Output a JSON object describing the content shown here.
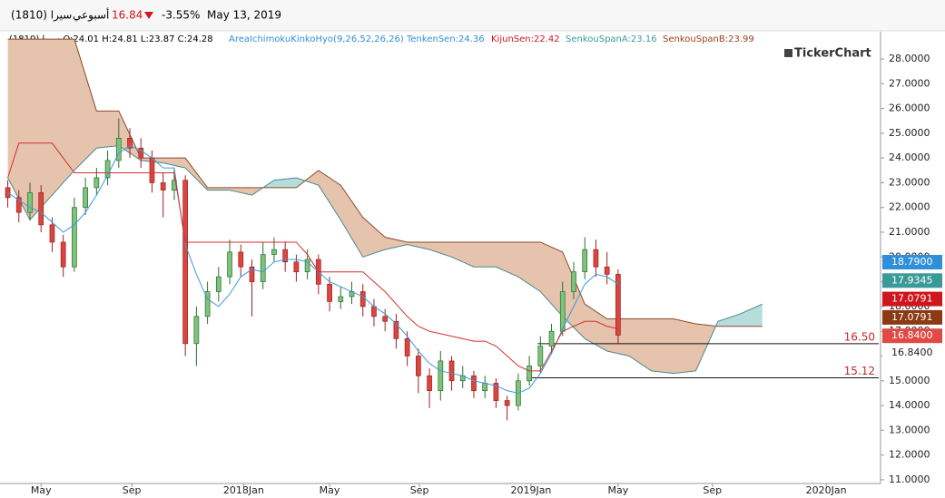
{
  "header": {
    "symbol": "سيرا (1810)",
    "period": "أسبوعي",
    "price": "16.84",
    "change": "-3.55%",
    "date": "May 13, 2019"
  },
  "legend": {
    "ohlc": "سيرا (1810)  O:24.01  H:24.81  L:23.87  C:24.28",
    "indicator": "AreaIchimokuKinkoHyo(9,26,52,26,26)",
    "tenkan": "TenkenSen:24.36",
    "kijun": "KijunSen:22.42",
    "span_a": "SenkouSpanA:23.16",
    "span_b": "SenkouSpanB:23.99",
    "logo": "TickerChart"
  },
  "chart_data": {
    "type": "candlestick",
    "xlim": [
      -7.4,
      151.3
    ],
    "xticks": [
      {
        "value": 0,
        "label": "May"
      },
      {
        "value": 16.35,
        "label": "Sep"
      },
      {
        "value": 36.5,
        "label": "2018Jan"
      },
      {
        "value": 52,
        "label": "May"
      },
      {
        "value": 68.2,
        "label": "Sep"
      },
      {
        "value": 88.3,
        "label": "2019Jan"
      },
      {
        "value": 104,
        "label": "May"
      },
      {
        "value": 121,
        "label": "Sep"
      },
      {
        "value": 141.5,
        "label": "2020Jan"
      }
    ],
    "ylim": [
      10.85,
      29.1
    ],
    "yticks": [
      {
        "value": 11,
        "label": "11.0000"
      },
      {
        "value": 12,
        "label": "12.0000"
      },
      {
        "value": 13,
        "label": "13.0000"
      },
      {
        "value": 14,
        "label": "14.0000"
      },
      {
        "value": 15,
        "label": "15.0000"
      },
      {
        "value": 16,
        "label": "16.0000"
      },
      {
        "value": 17,
        "label": "17.0000"
      },
      {
        "value": 18,
        "label": "18.0000"
      },
      {
        "value": 19,
        "label": "19.0000"
      },
      {
        "value": 20,
        "label": "20.0000"
      },
      {
        "value": 21,
        "label": "21.0000"
      },
      {
        "value": 22,
        "label": "22.0000"
      },
      {
        "value": 23,
        "label": "23.0000"
      },
      {
        "value": 24,
        "label": "24.0000"
      },
      {
        "value": 25,
        "label": "25.0000"
      },
      {
        "value": 26,
        "label": "26.0000"
      },
      {
        "value": 27,
        "label": "27.0000"
      },
      {
        "value": 28,
        "label": "28.0000"
      }
    ],
    "up_color": "#7cc47c",
    "up_stroke": "#2f6b2f",
    "down_color": "#d9453f",
    "down_stroke": "#a02020",
    "x": [
      -6,
      -4,
      -2,
      0,
      2,
      4,
      6,
      8,
      10,
      12,
      14,
      16,
      18,
      20,
      22,
      24,
      26,
      28,
      30,
      32,
      34,
      36,
      38,
      40,
      42,
      44,
      46,
      48,
      50,
      52,
      54,
      56,
      58,
      60,
      62,
      64,
      66,
      68,
      70,
      72,
      74,
      76,
      78,
      80,
      82,
      84,
      86,
      88,
      90,
      92,
      94,
      96,
      98,
      100,
      102,
      104
    ],
    "open": [
      22.8,
      22.4,
      21.8,
      22.6,
      21.3,
      20.6,
      19.6,
      22.0,
      22.8,
      23.2,
      23.9,
      24.8,
      24.4,
      24.0,
      23.0,
      22.7,
      23.1,
      16.5,
      17.6,
      18.6,
      19.2,
      20.2,
      19.6,
      19.0,
      20.1,
      20.3,
      19.8,
      19.4,
      19.9,
      18.9,
      18.2,
      18.4,
      18.6,
      18.0,
      17.6,
      17.4,
      16.7,
      16.0,
      15.2,
      14.6,
      15.8,
      15.0,
      15.2,
      14.6,
      14.9,
      14.2,
      14.0,
      15.0,
      15.6,
      16.4,
      17.0,
      18.6,
      19.4,
      20.3,
      19.6,
      19.3
    ],
    "high": [
      23.1,
      22.7,
      23.0,
      22.9,
      21.6,
      20.9,
      22.4,
      23.2,
      23.6,
      24.3,
      25.6,
      25.2,
      24.8,
      24.3,
      23.4,
      23.6,
      23.3,
      18.0,
      19.0,
      19.6,
      20.7,
      20.5,
      19.9,
      20.6,
      20.8,
      20.6,
      20.1,
      20.3,
      20.1,
      19.2,
      18.8,
      19.0,
      18.9,
      18.3,
      17.9,
      17.7,
      17.0,
      16.3,
      15.5,
      16.2,
      16.0,
      15.6,
      15.4,
      15.2,
      15.1,
      14.4,
      15.3,
      16.0,
      16.8,
      17.3,
      19.0,
      19.8,
      20.8,
      20.7,
      20.2,
      19.5
    ],
    "low": [
      22.0,
      21.4,
      21.5,
      21.0,
      20.2,
      19.2,
      19.4,
      21.7,
      22.5,
      22.9,
      23.6,
      24.0,
      23.6,
      22.6,
      21.6,
      22.3,
      16.0,
      15.6,
      17.3,
      18.2,
      18.9,
      19.2,
      17.6,
      18.7,
      19.8,
      19.4,
      19.0,
      19.1,
      18.5,
      17.8,
      17.9,
      18.1,
      17.6,
      17.2,
      17.0,
      16.3,
      15.6,
      14.5,
      13.9,
      14.2,
      14.6,
      14.7,
      14.3,
      14.3,
      13.9,
      13.4,
      13.8,
      14.8,
      15.3,
      16.1,
      16.8,
      18.3,
      19.1,
      19.2,
      18.9,
      16.5
    ],
    "close": [
      22.4,
      21.8,
      22.6,
      21.3,
      20.6,
      19.6,
      22.0,
      22.8,
      23.2,
      23.9,
      24.8,
      24.4,
      24.0,
      23.0,
      22.7,
      23.1,
      16.5,
      17.6,
      18.6,
      19.2,
      20.2,
      19.6,
      19.0,
      20.1,
      20.3,
      19.8,
      19.4,
      19.9,
      18.9,
      18.2,
      18.4,
      18.6,
      18.0,
      17.6,
      17.4,
      16.7,
      16.0,
      15.2,
      14.6,
      15.8,
      15.0,
      15.2,
      14.6,
      14.9,
      14.2,
      14.0,
      15.0,
      15.6,
      16.4,
      17.0,
      18.6,
      19.4,
      20.3,
      19.6,
      19.3,
      16.84
    ],
    "series": [
      {
        "color": "#3a9ad9",
        "values": [
          22.6,
          22.3,
          22.0,
          21.8,
          21.4,
          21.0,
          21.3,
          21.8,
          22.5,
          23.3,
          24.2,
          24.5,
          24.3,
          24.0,
          23.6,
          23.6,
          20.5,
          19.3,
          18.3,
          18.0,
          18.5,
          19.2,
          19.5,
          19.4,
          19.8,
          19.9,
          19.9,
          19.8,
          19.4,
          19.0,
          18.8,
          18.6,
          18.4,
          18.0,
          17.7,
          17.3,
          16.8,
          16.2,
          15.7,
          15.4,
          15.3,
          15.2,
          15.0,
          14.9,
          14.8,
          14.6,
          14.5,
          14.7,
          15.3,
          16.1,
          17.1,
          18.0,
          18.9,
          19.3,
          19.2,
          18.9
        ]
      },
      {
        "color": "#d32f2f",
        "values": [
          23.2,
          24.6,
          24.6,
          24.6,
          24.6,
          24.0,
          23.4,
          23.4,
          23.4,
          23.4,
          23.4,
          23.4,
          23.4,
          23.4,
          23.4,
          23.4,
          20.6,
          20.6,
          20.6,
          20.6,
          20.6,
          20.6,
          20.6,
          20.6,
          20.6,
          20.6,
          20.6,
          20.1,
          19.4,
          19.4,
          19.4,
          19.4,
          19.4,
          19.0,
          18.6,
          18.1,
          17.6,
          17.2,
          17.0,
          16.9,
          16.8,
          16.7,
          16.6,
          16.6,
          16.4,
          16.0,
          15.6,
          15.4,
          15.4,
          16.2,
          17.0,
          17.2,
          17.4,
          17.4,
          17.2,
          17.1
        ]
      }
    ],
    "cloud": {
      "x": [
        -6,
        -2,
        2,
        6,
        10,
        14,
        18,
        22,
        26,
        30,
        34,
        38,
        42,
        46,
        50,
        54,
        58,
        62,
        66,
        70,
        74,
        78,
        82,
        86,
        90,
        94,
        98,
        102,
        106,
        110,
        114,
        118,
        122,
        126,
        130
      ],
      "span_a": [
        23.2,
        21.5,
        22.5,
        23.5,
        24.4,
        24.5,
        23.9,
        23.8,
        23.6,
        22.7,
        22.7,
        22.5,
        23.1,
        23.2,
        22.9,
        21.5,
        20.0,
        20.3,
        20.5,
        20.3,
        20.0,
        19.6,
        19.6,
        19.2,
        18.6,
        17.6,
        16.7,
        16.2,
        16.0,
        15.4,
        15.3,
        15.4,
        17.4,
        17.7,
        18.1
      ],
      "span_b": [
        28.8,
        28.8,
        28.8,
        28.8,
        25.9,
        25.9,
        24.0,
        24.0,
        24.0,
        22.8,
        22.8,
        22.8,
        22.8,
        22.8,
        23.5,
        22.9,
        21.6,
        20.8,
        20.6,
        20.6,
        20.6,
        20.6,
        20.6,
        20.6,
        20.6,
        20.2,
        18.1,
        17.5,
        17.5,
        17.5,
        17.5,
        17.3,
        17.2,
        17.2,
        17.2
      ],
      "a_color": "#4b8a8a",
      "b_color": "#8b4a2b",
      "bull_fill": "#b7dcdc",
      "bear_fill": "#e5c3ad"
    },
    "hlines": [
      {
        "value": 16.5,
        "label": "16.50",
        "from": 89.5
      },
      {
        "value": 15.12,
        "label": "15.12",
        "from": 87.5
      }
    ],
    "price_tags": [
      {
        "label": "18.7900",
        "color": "#2f8fd8"
      },
      {
        "label": "17.9345",
        "color": "#3a9a9a"
      },
      {
        "label": "17.0791",
        "color": "#d0161c"
      },
      {
        "label": "17.0791",
        "color": "#8b3a14"
      },
      {
        "label": "16.8400",
        "color": "#e04a44"
      }
    ],
    "last_label": "16.8400"
  }
}
